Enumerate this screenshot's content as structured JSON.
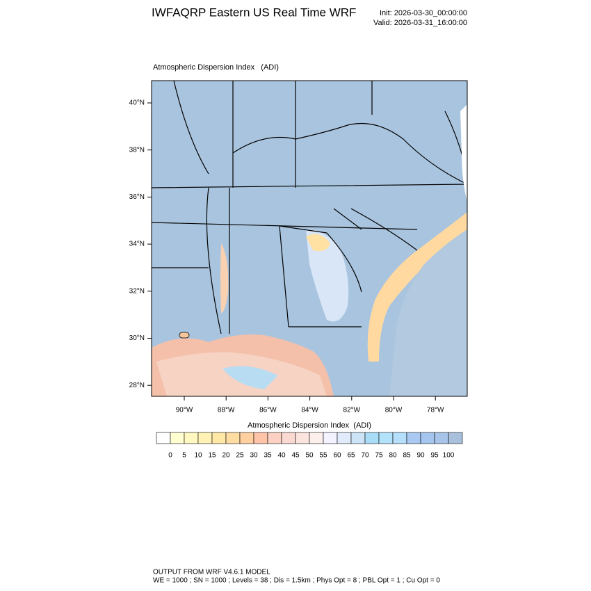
{
  "header": {
    "title": "IWFAQRP Eastern US Real Time WRF",
    "init": "Init: 2026-03-30_00:00:00",
    "valid": "Valid: 2026-03-31_16:00:00"
  },
  "map": {
    "title": "Atmospheric Dispersion Index   (ADI)",
    "lat_labels": [
      "40°N",
      "38°N",
      "36°N",
      "34°N",
      "32°N",
      "30°N",
      "28°N"
    ],
    "lon_labels": [
      "90°W",
      "88°W",
      "86°W",
      "84°W",
      "82°W",
      "80°W",
      "78°W"
    ]
  },
  "colorbar": {
    "title": "Atmospheric Dispersion Index  (ADI)",
    "labels": [
      0,
      5,
      10,
      15,
      20,
      25,
      30,
      35,
      40,
      45,
      50,
      55,
      60,
      65,
      70,
      75,
      80,
      85,
      90,
      95,
      100
    ],
    "colors": [
      "#ffffff",
      "#ffffd2",
      "#fff8c0",
      "#fff2b4",
      "#ffe8a6",
      "#ffdca2",
      "#ffcfa0",
      "#ffc3a8",
      "#fcd0c2",
      "#f9d9d2",
      "#fbe4de",
      "#fdf0ec",
      "#f3f3ff",
      "#e1ebfb",
      "#cce4f6",
      "#a8dcf7",
      "#b3e3fb",
      "#b5dffa",
      "#a9c9f2",
      "#a4c5ee",
      "#a8c4e8",
      "#a8c0dc"
    ]
  },
  "footer": {
    "line1": "OUTPUT FROM WRF V4.6.1 MODEL",
    "line2": "WE = 1000 ; SN = 1000 ; Levels = 38 ; Dis = 1.5km ; Phys Opt = 8 ; PBL Opt = 1 ; Cu Opt = 0"
  }
}
